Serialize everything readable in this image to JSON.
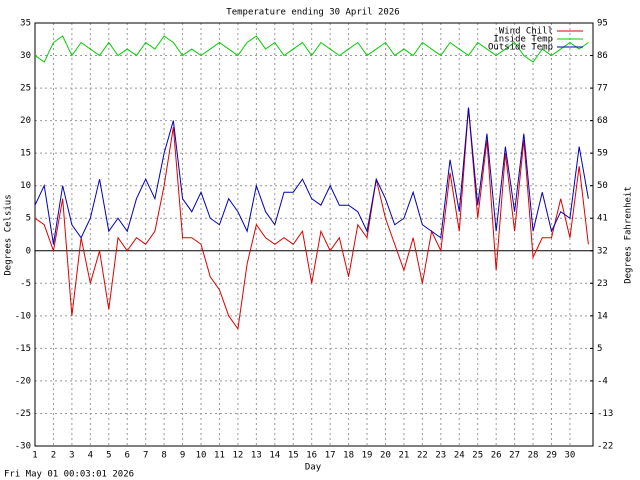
{
  "chart_data": {
    "type": "line",
    "title": "Temperature ending 30 April 2026",
    "xlabel": "Day",
    "ylabel": "Degrees Celsius",
    "y2label": "Degrees Fahrenheit",
    "footer": "Fri May 01 00:03:01 2026",
    "x": [
      1,
      1.5,
      2,
      2.5,
      3,
      3.5,
      4,
      4.5,
      5,
      5.5,
      6,
      6.5,
      7,
      7.5,
      8,
      8.5,
      9,
      9.5,
      10,
      10.5,
      11,
      11.5,
      12,
      12.5,
      13,
      13.5,
      14,
      14.5,
      15,
      15.5,
      16,
      16.5,
      17,
      17.5,
      18,
      18.5,
      19,
      19.5,
      20,
      20.5,
      21,
      21.5,
      22,
      22.5,
      23,
      23.5,
      24,
      24.5,
      25,
      25.5,
      26,
      26.5,
      27,
      27.5,
      28,
      28.5,
      29,
      29.5,
      30,
      30.5,
      31
    ],
    "series": [
      {
        "name": "Wind Chill",
        "color": "#e00000",
        "values": [
          5,
          4,
          0,
          8,
          -10,
          2,
          -5,
          0,
          -9,
          2,
          0,
          2,
          1,
          3,
          10,
          19,
          2,
          2,
          1,
          -4,
          -6,
          -10,
          -12,
          -2,
          4,
          2,
          1,
          2,
          1,
          3,
          -5,
          3,
          0,
          2,
          -4,
          4,
          2,
          11,
          5,
          1,
          -3,
          2,
          -5,
          3,
          0,
          12,
          3,
          22,
          5,
          17,
          -3,
          15,
          3,
          17,
          -1,
          2,
          2,
          8,
          2,
          13,
          1
        ]
      },
      {
        "name": "Inside Temp",
        "color": "#00d000",
        "values": [
          30,
          29,
          32,
          33,
          30,
          32,
          31,
          30,
          32,
          30,
          31,
          30,
          32,
          31,
          33,
          32,
          30,
          31,
          30,
          31,
          32,
          31,
          30,
          32,
          33,
          31,
          32,
          30,
          31,
          32,
          30,
          32,
          31,
          30,
          31,
          32,
          30,
          31,
          32,
          30,
          31,
          30,
          32,
          31,
          30,
          32,
          31,
          30,
          32,
          31,
          30,
          31,
          32,
          30,
          29,
          31,
          30,
          31,
          32,
          31,
          32
        ]
      },
      {
        "name": "Outside Temp",
        "color": "#0000c0",
        "values": [
          7,
          10,
          1,
          10,
          4,
          2,
          5,
          11,
          3,
          5,
          3,
          8,
          11,
          8,
          15,
          20,
          8,
          6,
          9,
          5,
          4,
          8,
          6,
          3,
          10,
          6,
          4,
          9,
          9,
          11,
          8,
          7,
          10,
          7,
          7,
          6,
          3,
          11,
          8,
          4,
          5,
          9,
          4,
          3,
          2,
          14,
          6,
          22,
          7,
          18,
          3,
          16,
          6,
          18,
          3,
          9,
          3,
          6,
          5,
          16,
          8
        ]
      }
    ],
    "xlim": [
      1,
      31.25
    ],
    "xticks": [
      1,
      2,
      3,
      4,
      5,
      6,
      7,
      8,
      9,
      10,
      11,
      12,
      13,
      14,
      15,
      16,
      17,
      18,
      19,
      20,
      21,
      22,
      23,
      24,
      25,
      26,
      27,
      28,
      29,
      30
    ],
    "ylim": [
      -30,
      35
    ],
    "yticks": [
      -30,
      -25,
      -20,
      -15,
      -10,
      -5,
      0,
      5,
      10,
      15,
      20,
      25,
      30,
      35
    ],
    "y2lim": [
      -22,
      95
    ],
    "y2ticks": [
      -22,
      -13,
      -4,
      5,
      14,
      23,
      32,
      41,
      50,
      59,
      68,
      77,
      86,
      95
    ],
    "grid": true,
    "legend": "upper right"
  }
}
